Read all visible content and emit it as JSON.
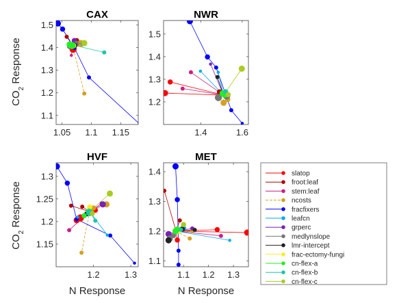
{
  "figure": {
    "xlabel": "N Response",
    "ylabel_main": "CO",
    "ylabel_sub": "2",
    "ylabel_rest": " Response"
  },
  "legend": [
    {
      "name": "slatop",
      "color": "#ff0000"
    },
    {
      "name": "froot:leaf",
      "color": "#b30000"
    },
    {
      "name": "stem:leaf",
      "color": "#cc1f84"
    },
    {
      "name": "ncosts",
      "color": "#d4a020"
    },
    {
      "name": "fracfixers",
      "color": "#0000ff"
    },
    {
      "name": "leafcn",
      "color": "#00aaee"
    },
    {
      "name": "grperc",
      "color": "#7d1fb8"
    },
    {
      "name": "medlynslope",
      "color": "#777777"
    },
    {
      "name": "lmr-intercept",
      "color": "#222222"
    },
    {
      "name": "frac-ectomy-fungi",
      "color": "#ffeb20"
    },
    {
      "name": "cn-flex-a",
      "color": "#22ee22"
    },
    {
      "name": "cn-flex-b",
      "color": "#18c8a8"
    },
    {
      "name": "cn-flex-c",
      "color": "#a8cc20"
    }
  ],
  "chart_data": [
    {
      "type": "scatter",
      "title": "CAX",
      "xlim": [
        1.04,
        1.18
      ],
      "ylim": [
        1.06,
        1.52
      ],
      "xticks": [
        "1.05",
        "1.1",
        "1.15"
      ],
      "xtick_values": [
        1.05,
        1.1,
        1.15
      ],
      "yticks": [
        "1.1",
        "1.2",
        "1.3",
        "1.4",
        "1.5"
      ],
      "ytick_values": [
        1.1,
        1.2,
        1.3,
        1.4,
        1.5
      ],
      "center": [
        1.068,
        1.412
      ],
      "series": [
        {
          "name": "slatop",
          "points": [
            [
              1.063,
              1.405
            ],
            [
              1.069,
              1.393
            ]
          ],
          "sizes": [
            5,
            7
          ]
        },
        {
          "name": "froot:leaf",
          "points": [
            [
              1.058,
              1.448
            ],
            [
              1.075,
              1.431
            ]
          ],
          "sizes": [
            4,
            5
          ]
        },
        {
          "name": "stem:leaf",
          "points": [
            [
              1.066,
              1.366
            ],
            [
              1.071,
              1.431
            ]
          ],
          "sizes": [
            3,
            5
          ]
        },
        {
          "name": "ncosts",
          "points": [
            [
              1.088,
              1.197
            ],
            [
              1.082,
              1.418
            ]
          ],
          "sizes": [
            4,
            7
          ]
        },
        {
          "name": "fracfixers",
          "points": [
            [
              1.043,
              1.507
            ],
            [
              1.051,
              1.482
            ],
            [
              1.071,
              1.399
            ],
            [
              1.096,
              1.268
            ],
            [
              1.182,
              1.063
            ]
          ],
          "sizes": [
            6,
            5,
            4,
            4,
            3
          ]
        },
        {
          "name": "leafcn",
          "points": [
            [
              1.062,
              1.402
            ],
            [
              1.085,
              1.418
            ]
          ],
          "sizes": [
            3,
            4
          ]
        },
        {
          "name": "grperc",
          "points": [
            [
              1.071,
              1.431
            ]
          ],
          "sizes": [
            5
          ]
        },
        {
          "name": "medlynslope",
          "points": [
            [
              1.075,
              1.419
            ]
          ],
          "sizes": [
            5
          ]
        },
        {
          "name": "lmr-intercept",
          "points": [
            [
              1.072,
              1.41
            ]
          ],
          "sizes": [
            5
          ]
        },
        {
          "name": "frac-ectomy-fungi",
          "points": [
            [
              1.07,
              1.409
            ]
          ],
          "sizes": [
            5
          ]
        },
        {
          "name": "cn-flex-a",
          "points": [
            [
              1.063,
              1.414
            ],
            [
              1.067,
              1.409
            ]
          ],
          "sizes": [
            6,
            7
          ]
        },
        {
          "name": "cn-flex-b",
          "points": [
            [
              1.122,
              1.379
            ]
          ],
          "sizes": [
            4
          ]
        },
        {
          "name": "cn-flex-c",
          "points": [
            [
              1.088,
              1.42
            ]
          ],
          "sizes": [
            6
          ]
        }
      ]
    },
    {
      "type": "scatter",
      "title": "NWR",
      "xlim": [
        1.22,
        1.63
      ],
      "ylim": [
        1.1,
        1.56
      ],
      "xticks": [
        "1.4",
        "1.6"
      ],
      "xtick_values": [
        1.4,
        1.6
      ],
      "yticks": [
        "1.2",
        "1.3",
        "1.4",
        "1.5"
      ],
      "ytick_values": [
        1.2,
        1.3,
        1.4,
        1.5
      ],
      "center": [
        1.51,
        1.23
      ],
      "series": [
        {
          "name": "slatop",
          "points": [
            [
              1.227,
              1.239
            ],
            [
              1.252,
              1.288
            ]
          ],
          "sizes": [
            6,
            5
          ]
        },
        {
          "name": "froot:leaf",
          "points": [
            [
              1.49,
              1.244
            ]
          ],
          "sizes": [
            5
          ]
        },
        {
          "name": "stem:leaf",
          "points": [
            [
              1.312,
              1.259
            ],
            [
              1.352,
              1.331
            ]
          ],
          "sizes": [
            4,
            4
          ]
        },
        {
          "name": "ncosts",
          "points": [
            [
              1.51,
              1.196
            ],
            [
              1.53,
              1.21
            ]
          ],
          "sizes": [
            6,
            5
          ]
        },
        {
          "name": "fracfixers",
          "points": [
            [
              1.347,
              1.557
            ],
            [
              1.432,
              1.399
            ],
            [
              1.474,
              1.352
            ],
            [
              1.547,
              1.163
            ],
            [
              1.6,
              1.105
            ]
          ],
          "sizes": [
            6,
            5,
            4,
            4,
            3
          ]
        },
        {
          "name": "leafcn",
          "points": [
            [
              1.398,
              1.336
            ],
            [
              1.484,
              1.331
            ]
          ],
          "sizes": [
            3,
            3
          ]
        },
        {
          "name": "grperc",
          "points": [
            [
              1.447,
              1.367
            ]
          ],
          "sizes": [
            3
          ]
        },
        {
          "name": "medlynslope",
          "points": [
            [
              1.485,
              1.219
            ],
            [
              1.525,
              1.226
            ]
          ],
          "sizes": [
            7,
            7
          ]
        },
        {
          "name": "lmr-intercept",
          "points": [
            [
              1.48,
              1.31
            ]
          ],
          "sizes": [
            4
          ]
        },
        {
          "name": "frac-ectomy-fungi",
          "points": [
            [
              1.52,
              1.24
            ]
          ],
          "sizes": [
            5
          ]
        },
        {
          "name": "cn-flex-a",
          "points": [
            [
              1.505,
              1.238
            ],
            [
              1.515,
              1.232
            ]
          ],
          "sizes": [
            6,
            6
          ]
        },
        {
          "name": "cn-flex-b",
          "points": [
            [
              1.52,
              1.245
            ]
          ],
          "sizes": [
            5
          ]
        },
        {
          "name": "cn-flex-c",
          "points": [
            [
              1.598,
              1.347
            ],
            [
              1.532,
              1.232
            ]
          ],
          "sizes": [
            6,
            5
          ]
        }
      ]
    },
    {
      "type": "scatter",
      "title": "HVF",
      "xlim": [
        1.1,
        1.32
      ],
      "ylim": [
        1.1,
        1.33
      ],
      "xticks": [
        "1.2",
        "1.3"
      ],
      "xtick_values": [
        1.2,
        1.3
      ],
      "yticks": [
        "1.15",
        "1.2",
        "1.25",
        "1.3"
      ],
      "ytick_values": [
        1.15,
        1.2,
        1.25,
        1.3
      ],
      "center": [
        1.19,
        1.222
      ],
      "series": [
        {
          "name": "slatop",
          "points": [
            [
              1.155,
              1.203
            ],
            [
              1.165,
              1.208
            ],
            [
              1.205,
              1.225
            ]
          ],
          "sizes": [
            6,
            7,
            5
          ]
        },
        {
          "name": "froot:leaf",
          "points": [
            [
              1.14,
              1.235
            ],
            [
              1.17,
              1.233
            ]
          ],
          "sizes": [
            4,
            4
          ]
        },
        {
          "name": "stem:leaf",
          "points": [
            [
              1.135,
              1.181
            ],
            [
              1.222,
              1.24
            ]
          ],
          "sizes": [
            4,
            4
          ]
        },
        {
          "name": "ncosts",
          "points": [
            [
              1.168,
              1.131
            ],
            [
              1.2,
              1.23
            ],
            [
              1.235,
              1.238
            ]
          ],
          "sizes": [
            4,
            5,
            6
          ]
        },
        {
          "name": "fracfixers",
          "points": [
            [
              1.102,
              1.322
            ],
            [
              1.13,
              1.285
            ],
            [
              1.155,
              1.205
            ],
            [
              1.245,
              1.169
            ],
            [
              1.31,
              1.108
            ]
          ],
          "sizes": [
            6,
            5,
            4,
            4,
            3
          ]
        },
        {
          "name": "leafcn",
          "points": [
            [
              1.158,
              1.21
            ],
            [
              1.237,
              1.17
            ]
          ],
          "sizes": [
            3,
            3
          ]
        },
        {
          "name": "grperc",
          "points": [
            [
              1.225,
              1.238
            ]
          ],
          "sizes": [
            6
          ]
        },
        {
          "name": "medlynslope",
          "points": [
            [
              1.19,
              1.222
            ]
          ],
          "sizes": [
            5
          ]
        },
        {
          "name": "lmr-intercept",
          "points": [
            [
              1.182,
              1.217
            ]
          ],
          "sizes": [
            5
          ]
        },
        {
          "name": "frac-ectomy-fungi",
          "points": [
            [
              1.19,
              1.232
            ]
          ],
          "sizes": [
            5
          ]
        },
        {
          "name": "cn-flex-a",
          "points": [
            [
              1.188,
              1.222
            ],
            [
              1.175,
              1.213
            ]
          ],
          "sizes": [
            6,
            5
          ]
        },
        {
          "name": "cn-flex-b",
          "points": [
            [
              1.19,
              1.22
            ],
            [
              1.205,
              1.202
            ]
          ],
          "sizes": [
            7,
            4
          ]
        },
        {
          "name": "cn-flex-c",
          "points": [
            [
              1.244,
              1.262
            ],
            [
              1.197,
              1.218
            ]
          ],
          "sizes": [
            6,
            5
          ]
        }
      ]
    },
    {
      "type": "scatter",
      "title": "MET",
      "xlim": [
        1.02,
        1.36
      ],
      "ylim": [
        1.08,
        1.43
      ],
      "xticks": [
        "1.1",
        "1.2",
        "1.3"
      ],
      "xtick_values": [
        1.1,
        1.2,
        1.3
      ],
      "yticks": [
        "1.1",
        "1.2",
        "1.3",
        "1.4"
      ],
      "ytick_values": [
        1.1,
        1.2,
        1.3,
        1.4
      ],
      "center": [
        1.07,
        1.2
      ],
      "series": [
        {
          "name": "slatop",
          "points": [
            [
              1.235,
              1.205
            ],
            [
              1.355,
              1.195
            ],
            [
              1.075,
              1.17
            ]
          ],
          "sizes": [
            5,
            6,
            5
          ]
        },
        {
          "name": "froot:leaf",
          "points": [
            [
              1.023,
              1.336
            ],
            [
              1.085,
              1.236
            ]
          ],
          "sizes": [
            4,
            4
          ]
        },
        {
          "name": "stem:leaf",
          "points": [
            [
              1.25,
              1.184
            ],
            [
              1.1,
              1.205
            ]
          ],
          "sizes": [
            4,
            4
          ]
        },
        {
          "name": "ncosts",
          "points": [
            [
              1.125,
              1.175
            ],
            [
              1.135,
              1.2
            ]
          ],
          "sizes": [
            4,
            4
          ]
        },
        {
          "name": "fracfixers",
          "points": [
            [
              1.068,
              1.418
            ],
            [
              1.075,
              1.306
            ],
            [
              1.08,
              1.134
            ],
            [
              1.08,
              1.087
            ]
          ],
          "sizes": [
            6,
            5,
            4,
            4
          ]
        },
        {
          "name": "leafcn",
          "points": [
            [
              1.285,
              1.169
            ],
            [
              1.105,
              1.21
            ]
          ],
          "sizes": [
            3,
            3
          ]
        },
        {
          "name": "grperc",
          "points": [
            [
              1.04,
              1.19
            ],
            [
              1.135,
              1.209
            ]
          ],
          "sizes": [
            6,
            4
          ]
        },
        {
          "name": "medlynslope",
          "points": [
            [
              1.045,
              1.175
            ],
            [
              1.06,
              1.185
            ]
          ],
          "sizes": [
            6,
            5
          ]
        },
        {
          "name": "lmr-intercept",
          "points": [
            [
              1.04,
              1.169
            ],
            [
              1.145,
              1.204
            ],
            [
              1.095,
              1.207
            ]
          ],
          "sizes": [
            6,
            4,
            5
          ]
        },
        {
          "name": "frac-ectomy-fungi",
          "points": [
            [
              1.08,
              1.2
            ]
          ],
          "sizes": [
            5
          ]
        },
        {
          "name": "cn-flex-a",
          "points": [
            [
              1.075,
              1.205
            ],
            [
              1.068,
              1.2
            ]
          ],
          "sizes": [
            6,
            6
          ]
        },
        {
          "name": "cn-flex-b",
          "points": [
            [
              1.09,
              1.205
            ]
          ],
          "sizes": [
            4
          ]
        },
        {
          "name": "cn-flex-c",
          "points": [
            [
              1.1,
              1.222
            ]
          ],
          "sizes": [
            5
          ]
        }
      ]
    }
  ]
}
